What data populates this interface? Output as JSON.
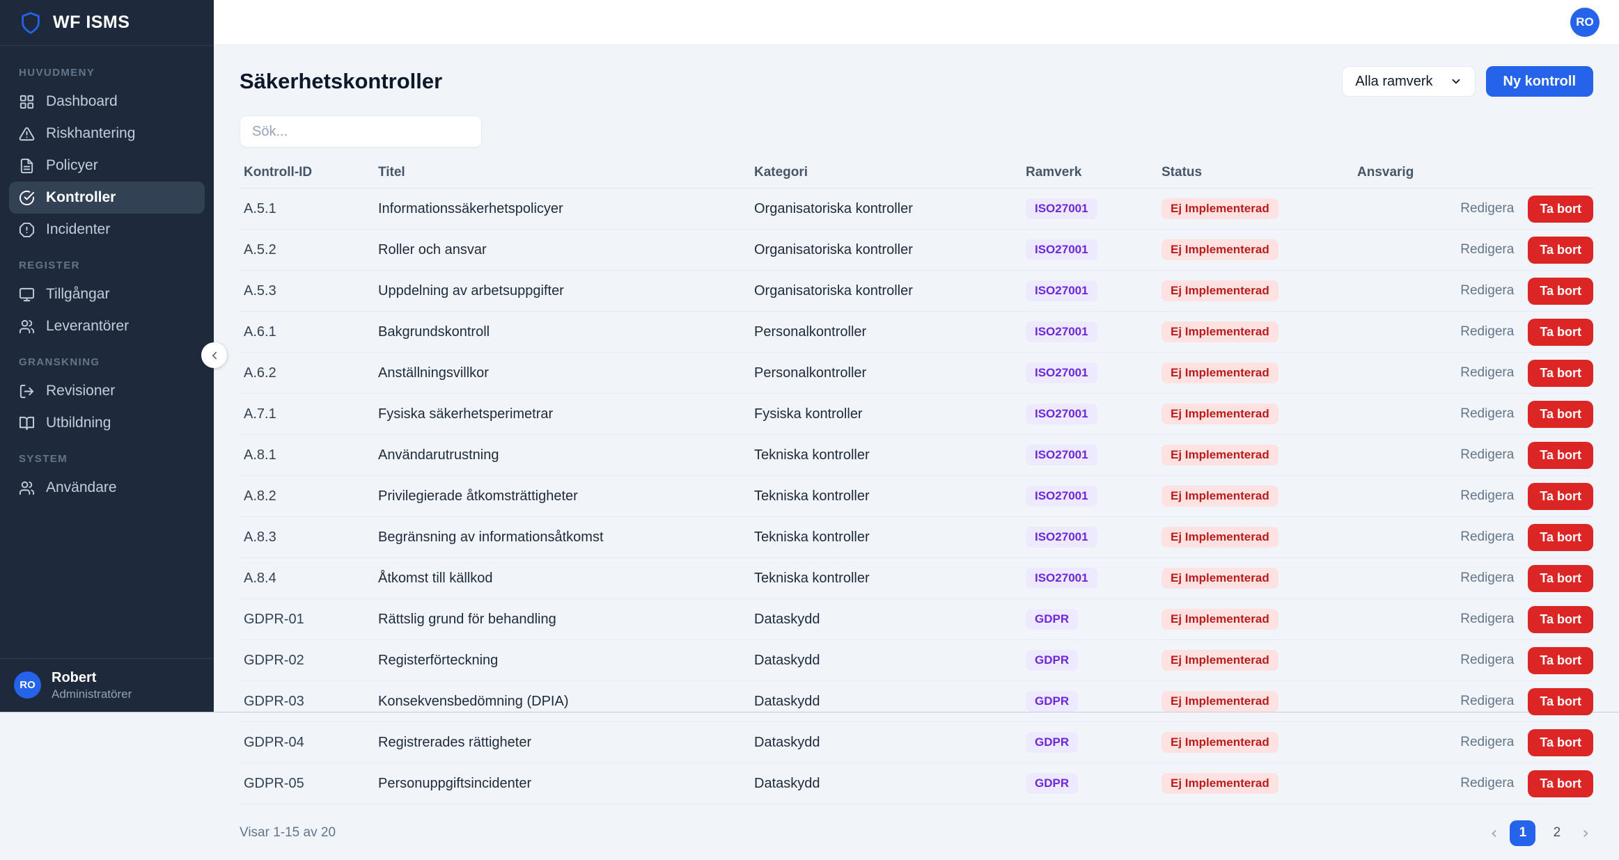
{
  "app": {
    "name": "WF ISMS"
  },
  "topbar": {
    "avatar_initials": "RO"
  },
  "sidebar": {
    "sections": [
      {
        "label": "HUVUDMENY",
        "items": [
          {
            "label": "Dashboard",
            "icon": "dashboard-icon",
            "active": false
          },
          {
            "label": "Riskhantering",
            "icon": "alert-triangle-icon",
            "active": false
          },
          {
            "label": "Policyer",
            "icon": "document-icon",
            "active": false
          },
          {
            "label": "Kontroller",
            "icon": "check-circle-icon",
            "active": true
          },
          {
            "label": "Incidenter",
            "icon": "alert-octagon-icon",
            "active": false
          }
        ]
      },
      {
        "label": "REGISTER",
        "items": [
          {
            "label": "Tillgångar",
            "icon": "monitor-icon",
            "active": false
          },
          {
            "label": "Leverantörer",
            "icon": "users-icon",
            "active": false
          }
        ]
      },
      {
        "label": "GRANSKNING",
        "items": [
          {
            "label": "Revisioner",
            "icon": "log-out-icon",
            "active": false
          },
          {
            "label": "Utbildning",
            "icon": "book-open-icon",
            "active": false
          }
        ]
      },
      {
        "label": "SYSTEM",
        "items": [
          {
            "label": "Användare",
            "icon": "users-icon",
            "active": false
          }
        ]
      }
    ],
    "user": {
      "initials": "RO",
      "name": "Robert",
      "role": "Administratörer"
    }
  },
  "page": {
    "title": "Säkerhetskontroller",
    "filter_value": "Alla ramverk",
    "new_button": "Ny kontroll",
    "search_placeholder": "Sök..."
  },
  "table": {
    "headers": [
      "Kontroll-ID",
      "Titel",
      "Kategori",
      "Ramverk",
      "Status",
      "Ansvarig"
    ],
    "actions": {
      "edit": "Redigera",
      "delete": "Ta bort"
    },
    "rows": [
      {
        "id": "A.5.1",
        "title": "Informationssäkerhetspolicyer",
        "category": "Organisatoriska kontroller",
        "framework": "ISO27001",
        "status": "Ej Implementerad",
        "responsible": ""
      },
      {
        "id": "A.5.2",
        "title": "Roller och ansvar",
        "category": "Organisatoriska kontroller",
        "framework": "ISO27001",
        "status": "Ej Implementerad",
        "responsible": ""
      },
      {
        "id": "A.5.3",
        "title": "Uppdelning av arbetsuppgifter",
        "category": "Organisatoriska kontroller",
        "framework": "ISO27001",
        "status": "Ej Implementerad",
        "responsible": ""
      },
      {
        "id": "A.6.1",
        "title": "Bakgrundskontroll",
        "category": "Personalkontroller",
        "framework": "ISO27001",
        "status": "Ej Implementerad",
        "responsible": ""
      },
      {
        "id": "A.6.2",
        "title": "Anställningsvillkor",
        "category": "Personalkontroller",
        "framework": "ISO27001",
        "status": "Ej Implementerad",
        "responsible": ""
      },
      {
        "id": "A.7.1",
        "title": "Fysiska säkerhetsperimetrar",
        "category": "Fysiska kontroller",
        "framework": "ISO27001",
        "status": "Ej Implementerad",
        "responsible": ""
      },
      {
        "id": "A.8.1",
        "title": "Användarutrustning",
        "category": "Tekniska kontroller",
        "framework": "ISO27001",
        "status": "Ej Implementerad",
        "responsible": ""
      },
      {
        "id": "A.8.2",
        "title": "Privilegierade åtkomsträttigheter",
        "category": "Tekniska kontroller",
        "framework": "ISO27001",
        "status": "Ej Implementerad",
        "responsible": ""
      },
      {
        "id": "A.8.3",
        "title": "Begränsning av informationsåtkomst",
        "category": "Tekniska kontroller",
        "framework": "ISO27001",
        "status": "Ej Implementerad",
        "responsible": ""
      },
      {
        "id": "A.8.4",
        "title": "Åtkomst till källkod",
        "category": "Tekniska kontroller",
        "framework": "ISO27001",
        "status": "Ej Implementerad",
        "responsible": ""
      },
      {
        "id": "GDPR-01",
        "title": "Rättslig grund för behandling",
        "category": "Dataskydd",
        "framework": "GDPR",
        "status": "Ej Implementerad",
        "responsible": ""
      },
      {
        "id": "GDPR-02",
        "title": "Registerförteckning",
        "category": "Dataskydd",
        "framework": "GDPR",
        "status": "Ej Implementerad",
        "responsible": ""
      },
      {
        "id": "GDPR-03",
        "title": "Konsekvensbedömning (DPIA)",
        "category": "Dataskydd",
        "framework": "GDPR",
        "status": "Ej Implementerad",
        "responsible": ""
      },
      {
        "id": "GDPR-04",
        "title": "Registrerades rättigheter",
        "category": "Dataskydd",
        "framework": "GDPR",
        "status": "Ej Implementerad",
        "responsible": ""
      },
      {
        "id": "GDPR-05",
        "title": "Personuppgiftsincidenter",
        "category": "Dataskydd",
        "framework": "GDPR",
        "status": "Ej Implementerad",
        "responsible": ""
      }
    ]
  },
  "footer": {
    "showing": "Visar 1-15 av 20",
    "prev": "‹",
    "next": "›",
    "pages": [
      "1",
      "2"
    ],
    "active_page": "1"
  },
  "colors": {
    "accent": "#2563eb",
    "danger": "#dc2626",
    "sidebar_bg": "#1e293b",
    "sidebar_active_bg": "#334155",
    "page_bg": "#f1f5f9",
    "framework_badge_bg": "#ede9fe",
    "framework_badge_text": "#6d28d9",
    "status_badge_bg": "#fee2e2",
    "status_badge_text": "#b91c1c"
  }
}
